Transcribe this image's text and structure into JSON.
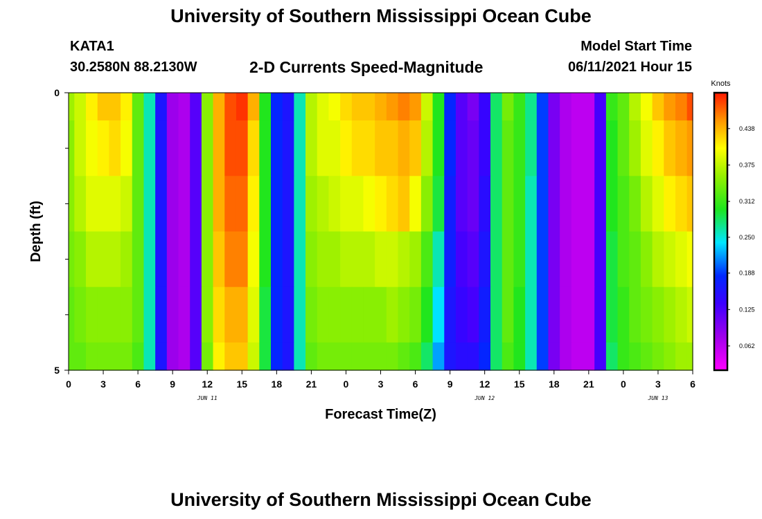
{
  "header": {
    "title": "University of Southern Mississippi Ocean Cube",
    "station": "KATA1",
    "coords": "30.2580N  88.2130W",
    "subtitle": "2-D Currents Speed-Magnitude",
    "model_start_label": "Model Start Time",
    "model_start_value": "06/11/2021 Hour 15"
  },
  "footer": {
    "title": "University of Southern Mississippi Ocean Cube"
  },
  "chart_data": {
    "type": "heatmap",
    "title": "2-D Currents Speed-Magnitude",
    "xlabel": "Forecast Time(Z)",
    "ylabel": "Depth (ft)",
    "x_tick_labels": [
      "0",
      "3",
      "6",
      "9",
      "12",
      "15",
      "18",
      "21",
      "0",
      "3",
      "6",
      "9",
      "12",
      "15",
      "18",
      "21",
      "0",
      "3",
      "6"
    ],
    "date_labels": [
      {
        "text": "JUN 11",
        "tick_index": 4
      },
      {
        "text": "JUN 12",
        "tick_index": 12
      },
      {
        "text": "JUN 13",
        "tick_index": 17
      }
    ],
    "y_range": [
      0,
      5
    ],
    "y_tick_labels": [
      {
        "value": 0,
        "label": "0"
      },
      {
        "value": 5,
        "label": "5"
      }
    ],
    "y_minor_ticks": [
      1,
      2,
      3,
      4
    ],
    "time_hours": [
      0,
      1,
      2,
      3,
      4,
      5,
      6,
      7,
      8,
      9,
      10,
      11,
      12,
      13,
      14,
      15,
      16,
      17,
      18,
      19,
      20,
      21,
      22,
      23,
      24,
      25,
      26,
      27,
      28,
      29,
      30,
      31,
      32,
      33,
      34,
      35,
      36,
      37,
      38,
      39,
      40,
      41,
      42,
      43,
      44,
      45,
      46,
      47,
      48,
      49,
      50,
      51,
      52,
      53,
      54
    ],
    "depth_layers_ft": [
      0,
      1,
      2,
      3,
      4,
      5
    ],
    "speed_knots": [
      [
        0.36,
        0.38,
        0.41,
        0.43,
        0.43,
        0.41,
        0.33,
        0.26,
        0.16,
        0.08,
        0.07,
        0.12,
        0.35,
        0.44,
        0.48,
        0.49,
        0.44,
        0.3,
        0.18,
        0.16,
        0.26,
        0.37,
        0.39,
        0.4,
        0.42,
        0.43,
        0.43,
        0.44,
        0.45,
        0.46,
        0.45,
        0.38,
        0.3,
        0.18,
        0.12,
        0.1,
        0.14,
        0.28,
        0.34,
        0.31,
        0.27,
        0.19,
        0.1,
        0.07,
        0.06,
        0.06,
        0.13,
        0.31,
        0.33,
        0.37,
        0.4,
        0.43,
        0.45,
        0.46,
        0.48
      ],
      [
        0.35,
        0.38,
        0.4,
        0.41,
        0.42,
        0.4,
        0.33,
        0.26,
        0.16,
        0.08,
        0.07,
        0.12,
        0.35,
        0.44,
        0.48,
        0.48,
        0.42,
        0.3,
        0.18,
        0.16,
        0.26,
        0.37,
        0.39,
        0.39,
        0.41,
        0.42,
        0.42,
        0.43,
        0.43,
        0.44,
        0.43,
        0.37,
        0.3,
        0.18,
        0.12,
        0.11,
        0.14,
        0.28,
        0.33,
        0.31,
        0.27,
        0.19,
        0.1,
        0.07,
        0.06,
        0.06,
        0.13,
        0.3,
        0.33,
        0.36,
        0.39,
        0.41,
        0.43,
        0.44,
        0.45
      ],
      [
        0.35,
        0.37,
        0.39,
        0.39,
        0.39,
        0.38,
        0.33,
        0.26,
        0.16,
        0.08,
        0.07,
        0.12,
        0.35,
        0.44,
        0.47,
        0.47,
        0.41,
        0.3,
        0.18,
        0.16,
        0.26,
        0.36,
        0.37,
        0.38,
        0.39,
        0.39,
        0.4,
        0.41,
        0.42,
        0.43,
        0.4,
        0.35,
        0.29,
        0.17,
        0.12,
        0.11,
        0.15,
        0.28,
        0.33,
        0.31,
        0.26,
        0.19,
        0.1,
        0.07,
        0.06,
        0.06,
        0.13,
        0.3,
        0.32,
        0.34,
        0.37,
        0.39,
        0.41,
        0.42,
        0.43
      ],
      [
        0.34,
        0.35,
        0.37,
        0.37,
        0.37,
        0.36,
        0.33,
        0.26,
        0.16,
        0.08,
        0.07,
        0.12,
        0.35,
        0.43,
        0.46,
        0.46,
        0.4,
        0.3,
        0.18,
        0.16,
        0.26,
        0.35,
        0.36,
        0.36,
        0.37,
        0.37,
        0.37,
        0.38,
        0.38,
        0.37,
        0.36,
        0.32,
        0.26,
        0.17,
        0.13,
        0.12,
        0.16,
        0.28,
        0.33,
        0.31,
        0.26,
        0.19,
        0.1,
        0.07,
        0.06,
        0.06,
        0.13,
        0.29,
        0.32,
        0.33,
        0.35,
        0.37,
        0.38,
        0.39,
        0.4
      ],
      [
        0.33,
        0.34,
        0.35,
        0.35,
        0.35,
        0.35,
        0.33,
        0.26,
        0.16,
        0.08,
        0.07,
        0.12,
        0.35,
        0.42,
        0.44,
        0.44,
        0.39,
        0.29,
        0.18,
        0.16,
        0.26,
        0.34,
        0.35,
        0.35,
        0.35,
        0.35,
        0.35,
        0.35,
        0.36,
        0.35,
        0.34,
        0.3,
        0.24,
        0.16,
        0.14,
        0.13,
        0.17,
        0.28,
        0.33,
        0.3,
        0.26,
        0.19,
        0.1,
        0.07,
        0.06,
        0.06,
        0.13,
        0.29,
        0.31,
        0.33,
        0.34,
        0.35,
        0.36,
        0.37,
        0.38
      ],
      [
        0.33,
        0.33,
        0.34,
        0.34,
        0.34,
        0.34,
        0.32,
        0.26,
        0.16,
        0.08,
        0.07,
        0.12,
        0.34,
        0.41,
        0.43,
        0.43,
        0.38,
        0.29,
        0.18,
        0.16,
        0.26,
        0.33,
        0.34,
        0.34,
        0.34,
        0.34,
        0.34,
        0.34,
        0.34,
        0.33,
        0.32,
        0.28,
        0.22,
        0.16,
        0.15,
        0.15,
        0.18,
        0.28,
        0.32,
        0.3,
        0.26,
        0.19,
        0.1,
        0.07,
        0.06,
        0.06,
        0.13,
        0.28,
        0.31,
        0.32,
        0.33,
        0.34,
        0.35,
        0.36,
        0.36
      ]
    ],
    "colorbar": {
      "title": "Knots",
      "range": [
        0.02,
        0.5
      ],
      "tick_labels": [
        "0.438",
        "0.375",
        "0.312",
        "0.250",
        "0.188",
        "0.125",
        "0.062"
      ]
    }
  }
}
